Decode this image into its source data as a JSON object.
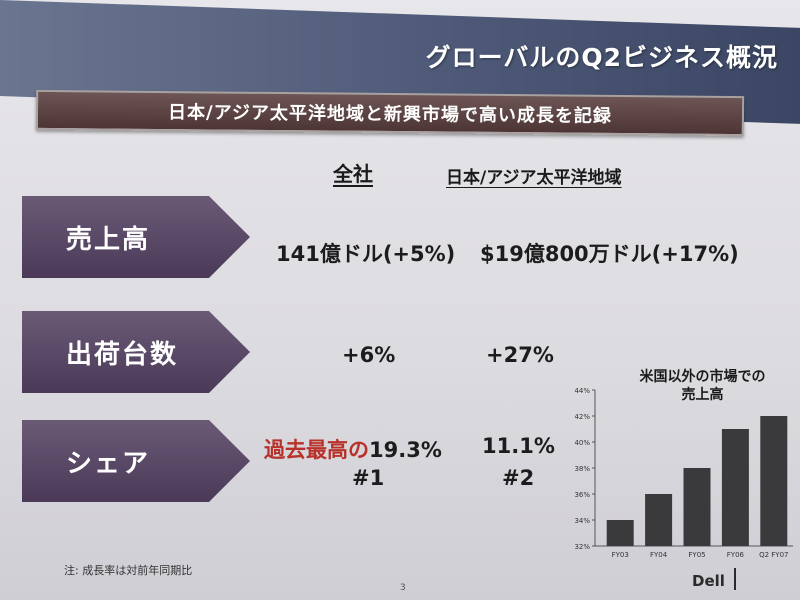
{
  "title": "グローバルのQ2ビジネス概況",
  "subtitle": "日本/アジア太平洋地域と新興市場で高い成長を記録",
  "columns": {
    "company": "全社",
    "region": "日本/アジア太平洋地域"
  },
  "rows": {
    "sales": {
      "label": "売上高",
      "company": "141億ドル(+5%)",
      "region": "$19億800万ドル(+17%)"
    },
    "shipments": {
      "label": "出荷台数",
      "company": "+6%",
      "region": "+27%"
    },
    "share": {
      "label": "シェア",
      "company_highlight": "過去最高の",
      "company_value": "19.3%",
      "company_rank": "#1",
      "region_value": "11.1%",
      "region_rank": "#2"
    }
  },
  "chart_title_line1": "米国以外の市場での",
  "chart_title_line2": "売上高",
  "chart_data": {
    "type": "bar",
    "categories": [
      "FY03",
      "FY04",
      "FY05",
      "FY06",
      "Q2 FY07"
    ],
    "values": [
      34,
      36,
      38,
      41,
      42
    ],
    "ylim": [
      32,
      44
    ],
    "yticks": [
      "32%",
      "34%",
      "36%",
      "38%",
      "40%",
      "42%",
      "44%"
    ],
    "bar_color": "#3a3a3c",
    "grid": false
  },
  "footnote": "注: 成長率は対前年同期比",
  "page_number": "3",
  "logo": "Dell"
}
